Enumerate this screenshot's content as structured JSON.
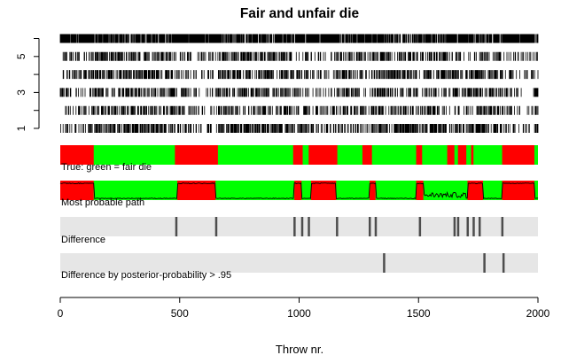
{
  "chart_data": {
    "type": "composite",
    "title": "Fair and unfair die",
    "xlabel": "Throw nr.",
    "xlim": [
      0,
      2000
    ],
    "x_ticks": [
      0,
      500,
      1000,
      1500,
      2000
    ],
    "rug": {
      "y_ticks": [
        1,
        2,
        3,
        4,
        5,
        6
      ],
      "y_tick_labels": [
        "1",
        "",
        "3",
        "",
        "5",
        ""
      ],
      "rows": [
        {
          "face": 1,
          "density": 0.62
        },
        {
          "face": 2,
          "density": 0.48
        },
        {
          "face": 3,
          "density": 0.52
        },
        {
          "face": 4,
          "density": 0.55
        },
        {
          "face": 5,
          "density": 0.5
        },
        {
          "face": 6,
          "density": 0.78
        }
      ]
    },
    "panels": [
      {
        "label": "True: green = fair die",
        "kind": "state_bar",
        "colors": {
          "fair": "#00ff00",
          "unfair": "#ff0000"
        },
        "unfair_segments": [
          [
            0,
            140
          ],
          [
            480,
            660
          ],
          [
            975,
            1015
          ],
          [
            1040,
            1160
          ],
          [
            1265,
            1305
          ],
          [
            1490,
            1515
          ],
          [
            1620,
            1650
          ],
          [
            1665,
            1700
          ],
          [
            1720,
            1730
          ],
          [
            1850,
            1985
          ]
        ]
      },
      {
        "label": "Most probable path",
        "kind": "state_bar_with_posterior",
        "colors": {
          "fair": "#00ff00",
          "unfair": "#ff0000"
        },
        "unfair_segments": [
          [
            0,
            140
          ],
          [
            490,
            650
          ],
          [
            980,
            1010
          ],
          [
            1050,
            1155
          ],
          [
            1295,
            1320
          ],
          [
            1490,
            1520
          ],
          [
            1705,
            1770
          ],
          [
            1850,
            1985
          ]
        ]
      },
      {
        "label": "Difference",
        "kind": "difference",
        "colors": {
          "background": "#e6e6e6",
          "mark": "#4d4d4d"
        },
        "marks": [
          485,
          652,
          980,
          1012,
          1040,
          1158,
          1295,
          1320,
          1505,
          1650,
          1665,
          1705,
          1730,
          1755,
          1850
        ]
      },
      {
        "label": "Difference by posterior-probability > .95",
        "kind": "difference",
        "colors": {
          "background": "#e6e6e6",
          "mark": "#4d4d4d"
        },
        "marks": [
          1355,
          1775,
          1855
        ]
      }
    ]
  }
}
